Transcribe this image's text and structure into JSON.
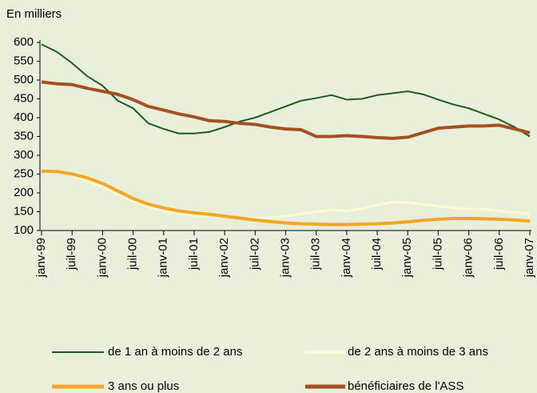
{
  "chart_data": {
    "type": "line",
    "y_label": "En milliers",
    "categories": [
      "janv-99",
      null,
      "juil-99",
      null,
      "janv-00",
      null,
      "juil-00",
      null,
      "janv-01",
      null,
      "juil-01",
      null,
      "janv-02",
      null,
      "juil-02",
      null,
      "janv-03",
      null,
      "juil-03",
      null,
      "janv-04",
      null,
      "juil-04",
      null,
      "janv-05",
      null,
      "juil-05",
      null,
      "janv-06",
      null,
      "juil-06",
      null,
      "janv-07"
    ],
    "series": [
      {
        "name": "de 1 an à moins de 2 ans",
        "color": "#1e5c1e",
        "width": 2,
        "values": [
          595,
          575,
          545,
          510,
          485,
          445,
          425,
          385,
          370,
          358,
          358,
          362,
          375,
          390,
          400,
          415,
          430,
          445,
          452,
          460,
          448,
          450,
          460,
          465,
          470,
          462,
          448,
          435,
          425,
          410,
          395,
          375,
          350
        ]
      },
      {
        "name": "de 2 ans à moins de 3 ans",
        "color": "#fffad0",
        "width": 3,
        "values": [
          262,
          257,
          245,
          232,
          215,
          195,
          178,
          162,
          152,
          145,
          140,
          138,
          137,
          135,
          133,
          134,
          138,
          145,
          150,
          155,
          152,
          158,
          168,
          175,
          175,
          170,
          165,
          160,
          158,
          157,
          152,
          148,
          145
        ]
      },
      {
        "name": "3 ans ou plus",
        "color": "#f5a623",
        "width": 4,
        "values": [
          258,
          257,
          250,
          240,
          225,
          205,
          185,
          170,
          160,
          152,
          147,
          143,
          138,
          133,
          128,
          124,
          120,
          118,
          117,
          116,
          116,
          117,
          118,
          120,
          123,
          127,
          130,
          132,
          132,
          131,
          130,
          128,
          125
        ]
      },
      {
        "name": "bénéficiaires de l'ASS",
        "color": "#a5501e",
        "width": 4,
        "values": [
          495,
          490,
          488,
          478,
          470,
          462,
          448,
          430,
          420,
          410,
          402,
          392,
          390,
          385,
          382,
          375,
          370,
          368,
          350,
          350,
          352,
          350,
          347,
          345,
          348,
          360,
          372,
          375,
          378,
          378,
          380,
          370,
          360
        ]
      }
    ],
    "ylim": [
      100,
      600
    ],
    "yticks": [
      100,
      150,
      200,
      250,
      300,
      350,
      400,
      450,
      500,
      550,
      600
    ],
    "grid": false
  }
}
